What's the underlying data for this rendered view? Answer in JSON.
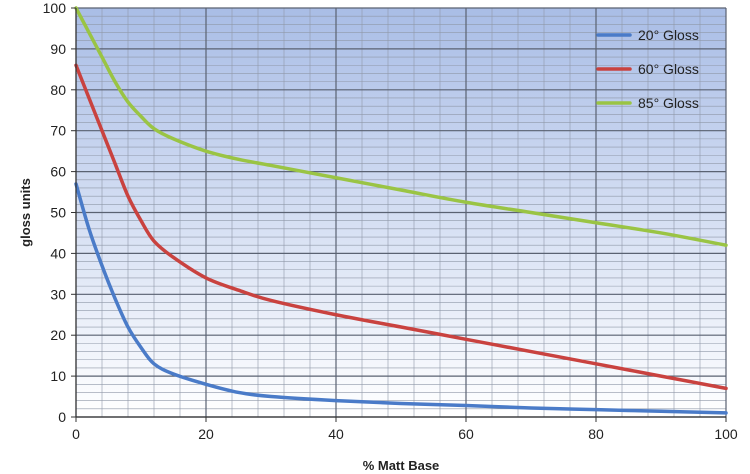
{
  "chart_data": {
    "type": "line",
    "title": "",
    "xlabel": "% Matt Base",
    "ylabel": "gloss units",
    "xlim": [
      0,
      100
    ],
    "ylim": [
      0,
      100
    ],
    "x_ticks": [
      0,
      20,
      40,
      60,
      80,
      100
    ],
    "y_ticks": [
      0,
      10,
      20,
      30,
      40,
      50,
      60,
      70,
      80,
      90,
      100
    ],
    "grid": true,
    "legend_position": "top-right",
    "background_gradient": [
      "#a9bde6",
      "#ffffff"
    ],
    "series": [
      {
        "name": "20° Gloss",
        "color": "#4a7bc8",
        "x": [
          0,
          2,
          4,
          6,
          8,
          10,
          12,
          15,
          20,
          25,
          30,
          40,
          50,
          60,
          70,
          80,
          90,
          100
        ],
        "y": [
          57,
          46,
          37,
          29,
          22,
          17,
          13,
          10.5,
          8,
          6,
          5,
          4,
          3.3,
          2.8,
          2.2,
          1.8,
          1.4,
          1
        ]
      },
      {
        "name": "60° Gloss",
        "color": "#c9423f",
        "x": [
          0,
          2,
          4,
          6,
          8,
          10,
          12,
          15,
          20,
          25,
          30,
          40,
          50,
          60,
          70,
          80,
          90,
          100
        ],
        "y": [
          86,
          78,
          70,
          62,
          54,
          48,
          43,
          39,
          34,
          31,
          28.5,
          25,
          22,
          19,
          16,
          13,
          10,
          7
        ]
      },
      {
        "name": "85° Gloss",
        "color": "#9ac444",
        "x": [
          0,
          2,
          4,
          6,
          8,
          10,
          12,
          15,
          20,
          25,
          30,
          40,
          50,
          60,
          70,
          80,
          90,
          100
        ],
        "y": [
          100,
          94,
          88,
          82,
          77,
          73.5,
          70.5,
          68,
          65,
          63,
          61.5,
          58.5,
          55.5,
          52.5,
          50,
          47.5,
          45,
          42
        ]
      }
    ]
  }
}
